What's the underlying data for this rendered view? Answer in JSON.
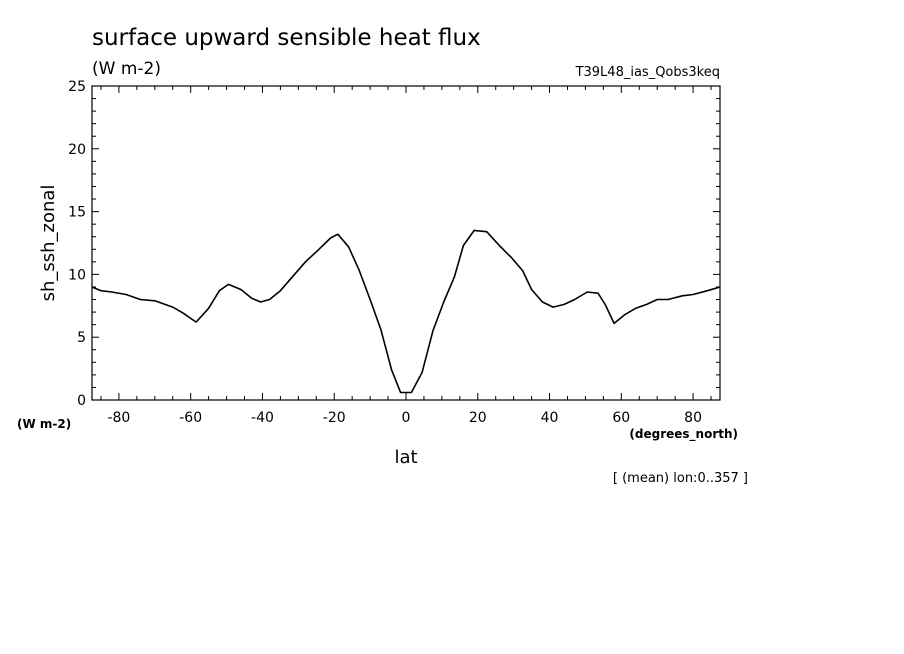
{
  "chart_data": {
    "type": "line",
    "title": "surface upward sensible heat flux",
    "subtitle": "(W m-2)",
    "run_label": "T39L48_ias_Qobs3keq",
    "ylabel": "sh_ssh_zonal",
    "yunits": "(W m-2)",
    "xlabel": "lat",
    "xunits": "(degrees_north)",
    "note": "[ (mean) lon:0..357 ]",
    "xlim": [
      -87.5,
      87.5
    ],
    "ylim": [
      0,
      25
    ],
    "x_ticks": [
      -80,
      -60,
      -40,
      -20,
      0,
      20,
      40,
      60,
      80
    ],
    "x_tick_labels": [
      "-80",
      "-60",
      "-40",
      "-20",
      "0",
      "20",
      "40",
      "60",
      "80"
    ],
    "y_ticks": [
      0,
      5,
      10,
      15,
      20,
      25
    ],
    "y_tick_labels": [
      "0",
      "5",
      "10",
      "15",
      "20",
      "25"
    ],
    "grid": false,
    "series": [
      {
        "x": [
          -87.5,
          -85,
          -82,
          -78,
          -74,
          -70,
          -65,
          -62,
          -58.5,
          -55,
          -52,
          -49.5,
          -46,
          -43,
          -40.5,
          -38,
          -35,
          -32,
          -28,
          -25,
          -21,
          -19,
          -16,
          -13,
          -10,
          -7,
          -4,
          -1.5,
          1.5,
          4.5,
          7.5,
          10.5,
          13.5,
          16,
          19,
          22.5,
          26,
          29.5,
          32.5,
          35,
          38,
          41,
          44,
          47,
          50.5,
          53.5,
          55.5,
          58,
          61,
          64,
          67,
          70,
          73,
          77,
          80,
          84,
          87.5
        ],
        "y": [
          9.0,
          8.7,
          8.6,
          8.4,
          8.0,
          7.9,
          7.4,
          6.9,
          6.2,
          7.3,
          8.7,
          9.2,
          8.8,
          8.1,
          7.8,
          8.0,
          8.7,
          9.7,
          11.0,
          11.8,
          12.9,
          13.2,
          12.2,
          10.3,
          8.0,
          5.6,
          2.4,
          0.6,
          0.6,
          2.2,
          5.5,
          7.8,
          9.8,
          12.3,
          13.5,
          13.4,
          12.3,
          11.3,
          10.3,
          8.8,
          7.8,
          7.4,
          7.6,
          8.0,
          8.6,
          8.5,
          7.6,
          6.1,
          6.8,
          7.3,
          7.6,
          8.0,
          8.0,
          8.3,
          8.4,
          8.7,
          9.0
        ]
      }
    ]
  }
}
